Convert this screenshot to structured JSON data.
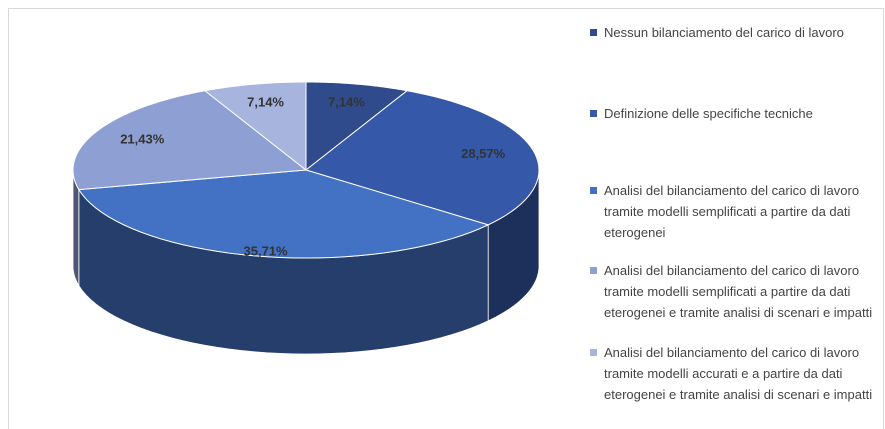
{
  "chart_data": {
    "type": "pie",
    "categories": [
      "Nessun bilanciamento del carico di lavoro",
      "Definizione delle specifiche tecniche",
      "Analisi del bilanciamento del carico di lavoro tramite modelli semplificati a partire da dati eterogenei",
      "Analisi del bilanciamento del carico di lavoro tramite modelli semplificati a partire da dati eterogenei e tramite analisi di scenari e impatti",
      "Analisi del bilanciamento del carico di lavoro tramite modelli accurati e a partire da dati eterogenei e tramite analisi di scenari e impatti"
    ],
    "values": [
      7.14,
      28.57,
      35.71,
      21.43,
      7.14
    ],
    "value_labels": [
      "7,14%",
      "28,57%",
      "35,71%",
      "21,43%",
      "7,14%"
    ],
    "colors": [
      "#2f4b8c",
      "#3558a8",
      "#4371c4",
      "#8d9fd3",
      "#a7b5de"
    ],
    "legend": "right"
  }
}
